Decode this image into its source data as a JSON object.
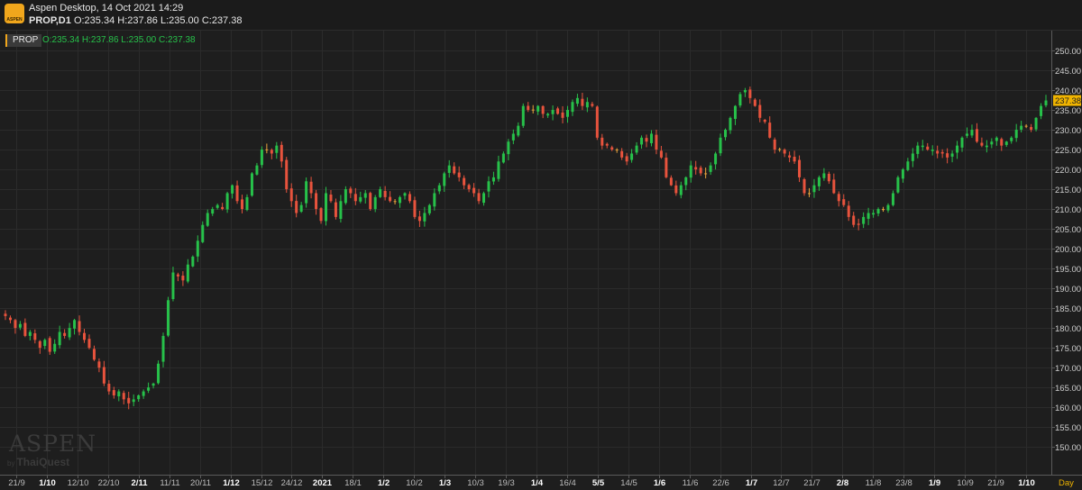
{
  "header": {
    "app_title": "Aspen Desktop, 14 Oct 2021 14:29",
    "symbol_period": "PROP,D1",
    "ohlc_text": "O:235.34 H:237.86 L:235.00 C:237.38",
    "logo_text": "ASPEN"
  },
  "legend": {
    "symbol": "PROP",
    "ohlc_text": "O:235.34 H:237.86 L:235.00 C:237.38"
  },
  "watermark": {
    "main": "ASPEN",
    "by": "by",
    "sub": "ThaiQuest"
  },
  "colors": {
    "background": "#1e1e1e",
    "up": "#27c14a",
    "down": "#e8533d",
    "doji": "#e8a33d",
    "grid": "#2b2b2b",
    "price_badge": "#f0b400"
  },
  "chart_data": {
    "type": "candlestick",
    "period": "D1",
    "ylim": [
      143,
      255
    ],
    "grid": true,
    "y_ticks": [
      "150.00",
      "155.00",
      "160.00",
      "165.00",
      "170.00",
      "175.00",
      "180.00",
      "185.00",
      "190.00",
      "195.00",
      "200.00",
      "205.00",
      "210.00",
      "215.00",
      "220.00",
      "225.00",
      "230.00",
      "235.00",
      "240.00",
      "245.00",
      "250.00"
    ],
    "x_ticks": [
      {
        "label": "21/9",
        "bold": false
      },
      {
        "label": "1/10",
        "bold": true
      },
      {
        "label": "12/10",
        "bold": false
      },
      {
        "label": "22/10",
        "bold": false
      },
      {
        "label": "2/11",
        "bold": true
      },
      {
        "label": "11/11",
        "bold": false
      },
      {
        "label": "20/11",
        "bold": false
      },
      {
        "label": "1/12",
        "bold": true
      },
      {
        "label": "15/12",
        "bold": false
      },
      {
        "label": "24/12",
        "bold": false
      },
      {
        "label": "2021",
        "bold": true
      },
      {
        "label": "18/1",
        "bold": false
      },
      {
        "label": "1/2",
        "bold": true
      },
      {
        "label": "10/2",
        "bold": false
      },
      {
        "label": "1/3",
        "bold": true
      },
      {
        "label": "10/3",
        "bold": false
      },
      {
        "label": "19/3",
        "bold": false
      },
      {
        "label": "1/4",
        "bold": true
      },
      {
        "label": "16/4",
        "bold": false
      },
      {
        "label": "5/5",
        "bold": true
      },
      {
        "label": "14/5",
        "bold": false
      },
      {
        "label": "1/6",
        "bold": true
      },
      {
        "label": "11/6",
        "bold": false
      },
      {
        "label": "22/6",
        "bold": false
      },
      {
        "label": "1/7",
        "bold": true
      },
      {
        "label": "12/7",
        "bold": false
      },
      {
        "label": "21/7",
        "bold": false
      },
      {
        "label": "2/8",
        "bold": true
      },
      {
        "label": "11/8",
        "bold": false
      },
      {
        "label": "23/8",
        "bold": false
      },
      {
        "label": "1/9",
        "bold": true
      },
      {
        "label": "10/9",
        "bold": false
      },
      {
        "label": "21/9",
        "bold": false
      },
      {
        "label": "1/10",
        "bold": true
      }
    ],
    "x_axis_unit": "Day",
    "last_price": "237.38",
    "closes": [
      183,
      182,
      180,
      181,
      178,
      179,
      177,
      175,
      177,
      174,
      176,
      179,
      178,
      180,
      182,
      179,
      177,
      175,
      172,
      170,
      166,
      164,
      163,
      164,
      162,
      161,
      162,
      163,
      164,
      165,
      166,
      171,
      178,
      187,
      194,
      193,
      192,
      196,
      198,
      202,
      206,
      209,
      210,
      211,
      210,
      214,
      216,
      212,
      210,
      213,
      219,
      221,
      225,
      225,
      224,
      226,
      222,
      215,
      212,
      209,
      211,
      217,
      214,
      210,
      207,
      214,
      212,
      208,
      212,
      215,
      214,
      212,
      213,
      214,
      210,
      213,
      215,
      213,
      212,
      212,
      213,
      214,
      212,
      208,
      207,
      209,
      211,
      214,
      216,
      219,
      221,
      219,
      218,
      216,
      215,
      214,
      212,
      214,
      217,
      218,
      222,
      224,
      227,
      229,
      231,
      236,
      235,
      235,
      236,
      234,
      234,
      235,
      234,
      233,
      235,
      237,
      238,
      236,
      237,
      236,
      228,
      226,
      226,
      225,
      225,
      223,
      222,
      224,
      226,
      228,
      227,
      229,
      225,
      223,
      218,
      216,
      214,
      216,
      218,
      221,
      220,
      219,
      219,
      221,
      224,
      228,
      230,
      233,
      236,
      239,
      240,
      238,
      236,
      233,
      232,
      228,
      225,
      225,
      224,
      223,
      222,
      218,
      214,
      214,
      216,
      218,
      219,
      217,
      214,
      212,
      211,
      208,
      206,
      206,
      208,
      209,
      209,
      210,
      210,
      211,
      214,
      218,
      220,
      222,
      224,
      226,
      226,
      225,
      225,
      224,
      224,
      223,
      224,
      226,
      228,
      229,
      230,
      227,
      226,
      226,
      227,
      228,
      226,
      227,
      228,
      230,
      231,
      231,
      230,
      233,
      236,
      237.38
    ]
  }
}
